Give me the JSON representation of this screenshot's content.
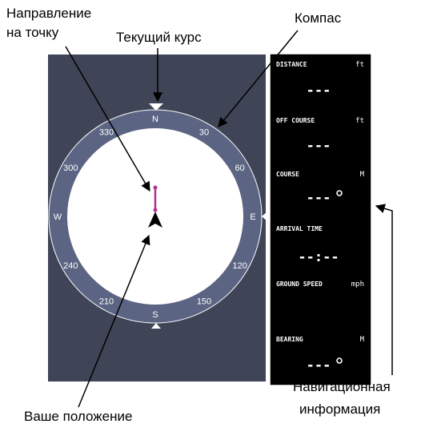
{
  "callouts": [
    {
      "lines": [
        "Направление",
        "на точку"
      ]
    },
    {
      "lines": [
        "Текущий курс"
      ]
    },
    {
      "lines": [
        "Компас"
      ]
    },
    {
      "lines": [
        "Навигационная",
        "информация"
      ]
    },
    {
      "lines": [
        "Ваше положение"
      ]
    }
  ],
  "compass": {
    "labels": [
      "N",
      "30",
      "60",
      "E",
      "120",
      "150",
      "S",
      "210",
      "240",
      "W",
      "300",
      "330"
    ]
  },
  "nav_panel": {
    "fields": [
      {
        "label": "DISTANCE",
        "unit": "ft",
        "value": "---"
      },
      {
        "label": "OFF COURSE",
        "unit": "ft",
        "value": "---"
      },
      {
        "label": "COURSE",
        "unit": "M",
        "value": "---"
      },
      {
        "label": "ARRIVAL TIME",
        "value": "--:--"
      },
      {
        "label": "GROUND SPEED",
        "unit": "mph"
      },
      {
        "label": "BEARING",
        "unit": "M",
        "value": "---"
      }
    ]
  }
}
